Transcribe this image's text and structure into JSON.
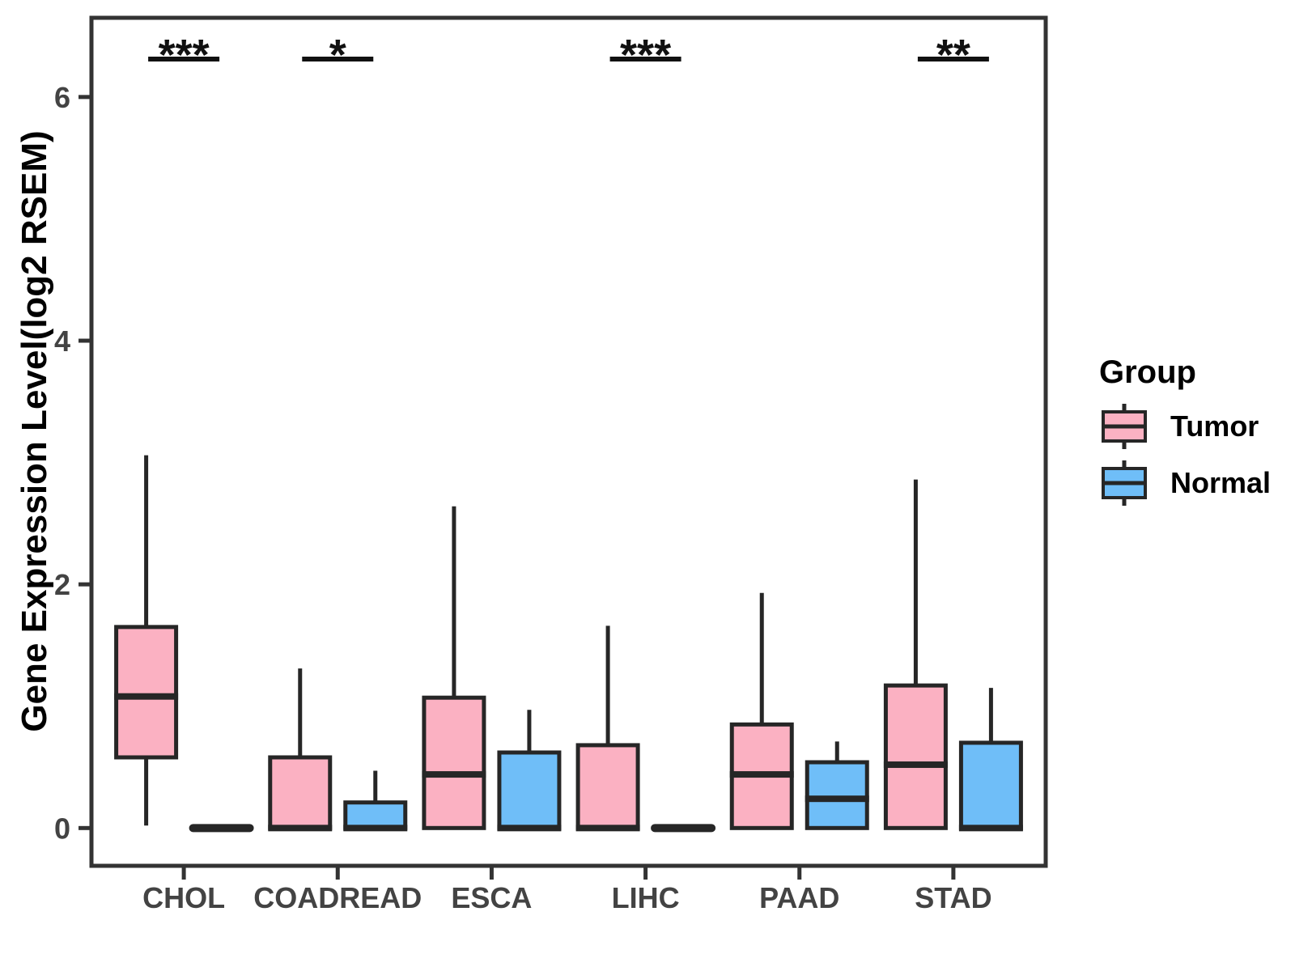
{
  "chart_data": {
    "type": "boxplot",
    "title": "",
    "xlabel": "",
    "ylabel": "Gene Expression Level(log2 RSEM)",
    "categories": [
      "CHOL",
      "COADREAD",
      "ESCA",
      "LIHC",
      "PAAD",
      "STAD"
    ],
    "ylim": [
      -0.31,
      6.65
    ],
    "yticks": [
      0,
      2,
      4,
      6
    ],
    "ytick_labels": [
      "0",
      "2",
      "4",
      "6"
    ],
    "grid": "off",
    "legend_position": "right",
    "significance": [
      "***",
      "*",
      null,
      "***",
      null,
      "**"
    ],
    "series": [
      {
        "name": "Tumor",
        "color": "#FBB1C2",
        "boxes": [
          {
            "min": 0.02,
            "q1": 0.58,
            "med": 1.08,
            "q3": 1.65,
            "max": 3.06
          },
          {
            "min": 0,
            "q1": 0,
            "med": 0,
            "q3": 0.58,
            "max": 1.31
          },
          {
            "min": 0,
            "q1": 0,
            "med": 0.44,
            "q3": 1.07,
            "max": 2.64
          },
          {
            "min": 0,
            "q1": 0,
            "med": 0,
            "q3": 0.68,
            "max": 1.66
          },
          {
            "min": 0,
            "q1": 0,
            "med": 0.44,
            "q3": 0.85,
            "max": 1.93
          },
          {
            "min": 0,
            "q1": 0,
            "med": 0.52,
            "q3": 1.17,
            "max": 2.86
          }
        ]
      },
      {
        "name": "Normal",
        "color": "#6FBEF8",
        "boxes": [
          {
            "min": 0,
            "q1": 0,
            "med": 0,
            "q3": 0,
            "max": 0
          },
          {
            "min": 0,
            "q1": 0,
            "med": 0,
            "q3": 0.21,
            "max": 0.47
          },
          {
            "min": 0,
            "q1": 0,
            "med": 0,
            "q3": 0.62,
            "max": 0.97
          },
          {
            "min": 0,
            "q1": 0,
            "med": 0,
            "q3": 0,
            "max": 0
          },
          {
            "min": 0,
            "q1": 0,
            "med": 0.24,
            "q3": 0.54,
            "max": 0.71
          },
          {
            "min": 0,
            "q1": 0,
            "med": 0,
            "q3": 0.7,
            "max": 1.15
          }
        ]
      }
    ],
    "legend": {
      "title": "Group",
      "entries": [
        {
          "label": "Tumor",
          "color": "#FBB1C2"
        },
        {
          "label": "Normal",
          "color": "#6FBEF8"
        }
      ]
    },
    "colors": {
      "box_border": "#262626",
      "panel_border": "#333333",
      "tick_text": "#434343",
      "annotation": "#111111"
    }
  }
}
